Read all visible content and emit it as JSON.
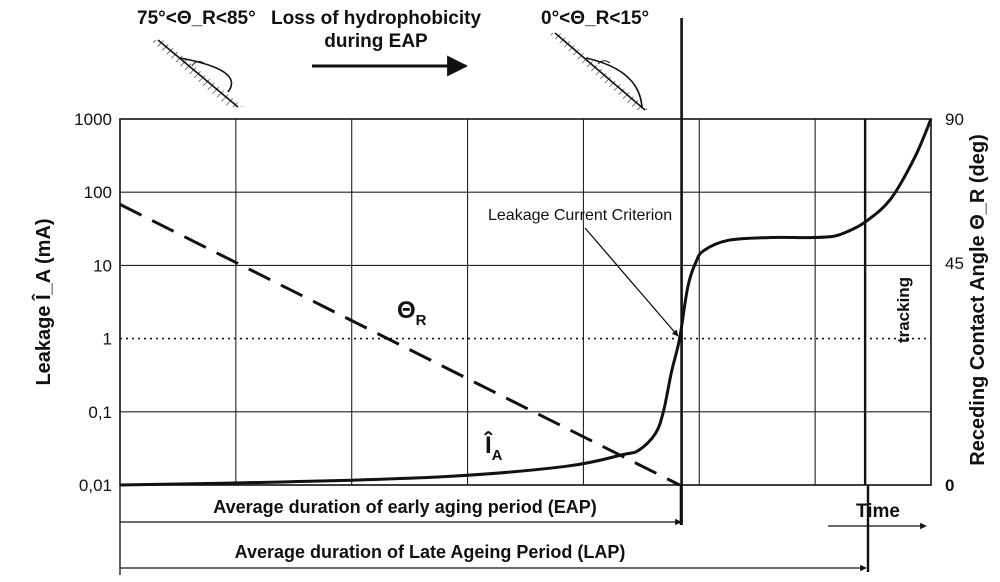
{
  "chart_data": {
    "type": "line",
    "title": "",
    "xlabel": "Time",
    "ylabel_left": "Leakage Î_A (mA)",
    "ylabel_right": "Receding Contact Angle Θ_R (deg)",
    "y_scale_left": "log",
    "ylim_left": [
      0.01,
      1000
    ],
    "ylim_right": [
      0,
      90
    ],
    "x_range": [
      0,
      100
    ],
    "left_tick_labels": [
      "1000",
      "100",
      "10",
      "1",
      "0,1",
      "0,01"
    ],
    "right_tick_labels": [
      "90",
      "45",
      "0"
    ],
    "grid": true,
    "series": [
      {
        "name": "Θ_R",
        "axis": "right",
        "style": "dashed",
        "x": [
          0,
          69
        ],
        "y": [
          69,
          0
        ]
      },
      {
        "name": "Î_A",
        "axis": "left",
        "style": "solid",
        "x": [
          0,
          20,
          40,
          55,
          62,
          64,
          66,
          67,
          68,
          69,
          70,
          71,
          72,
          75,
          80,
          85,
          88,
          90,
          92,
          95,
          98,
          100
        ],
        "y": [
          0.01,
          0.011,
          0.013,
          0.018,
          0.026,
          0.03,
          0.05,
          0.1,
          0.35,
          1.0,
          5.0,
          11,
          16,
          22,
          24,
          24,
          25,
          30,
          40,
          80,
          300,
          1000
        ]
      }
    ],
    "annotations": {
      "criterion_label": "Leakage Current Criterion",
      "criterion_level_mA": 1,
      "theta_label_main": "Θ",
      "theta_label_sub": "R",
      "current_label_main": "Î",
      "current_label_sub": "A",
      "tracking_label": "tracking",
      "eap_end_x": 69,
      "tracking_x": 92
    },
    "header": {
      "angle_before": "75°<Θ_R<85°",
      "angle_after": "0°<Θ_R<15°",
      "loss_line1": "Loss of hydrophobicity",
      "loss_line2": "during  EAP"
    },
    "bottom": {
      "eap_label": "Average duration of early aging period (EAP)",
      "lap_label": "Average duration of Late Ageing Period (LAP)",
      "time_label": "Time"
    }
  }
}
